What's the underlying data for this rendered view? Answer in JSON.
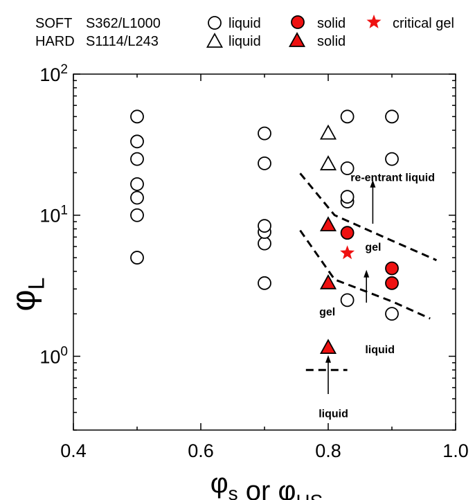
{
  "chart_data": {
    "type": "scatter",
    "xlabel": "φs or φHS",
    "ylabel": "φL",
    "xlim": [
      0.4,
      1.0
    ],
    "ylim": [
      0.3,
      100
    ],
    "x_scale": "linear",
    "y_scale": "log",
    "x_ticks": [
      "0.4",
      "0.6",
      "0.8",
      "1.0"
    ],
    "y_ticks": [
      "10^0",
      "10^1",
      "10^2"
    ],
    "legend": {
      "rows": [
        {
          "label": "SOFT",
          "code": "S362/L1000"
        },
        {
          "label": "HARD",
          "code": "S1114/L243"
        }
      ],
      "entries": [
        {
          "series": "soft-liquid",
          "label": "liquid"
        },
        {
          "series": "soft-solid",
          "label": "solid"
        },
        {
          "series": "soft-critical-gel",
          "label": "critical gel"
        },
        {
          "series": "hard-liquid",
          "label": "liquid"
        },
        {
          "series": "hard-solid",
          "label": "solid"
        }
      ]
    },
    "series": [
      {
        "id": "soft-liquid",
        "marker": "circle",
        "fill": "#ffffff",
        "points": [
          [
            0.5,
            5.0
          ],
          [
            0.5,
            10.0
          ],
          [
            0.5,
            13.3
          ],
          [
            0.5,
            16.6
          ],
          [
            0.5,
            25.0
          ],
          [
            0.5,
            33.3
          ],
          [
            0.5,
            50.0
          ],
          [
            0.7,
            3.3
          ],
          [
            0.7,
            6.3
          ],
          [
            0.7,
            7.6
          ],
          [
            0.7,
            8.4
          ],
          [
            0.7,
            23.3
          ],
          [
            0.7,
            38.0
          ],
          [
            0.83,
            2.5
          ],
          [
            0.83,
            12.5
          ],
          [
            0.83,
            13.5
          ],
          [
            0.83,
            21.5
          ],
          [
            0.83,
            50.0
          ],
          [
            0.9,
            2.0
          ],
          [
            0.9,
            25.0
          ],
          [
            0.9,
            50.0
          ]
        ]
      },
      {
        "id": "soft-solid",
        "marker": "circle",
        "fill": "#ee1111",
        "points": [
          [
            0.83,
            7.5
          ],
          [
            0.9,
            3.3
          ],
          [
            0.9,
            4.2
          ]
        ]
      },
      {
        "id": "soft-critical-gel",
        "marker": "star",
        "fill": "#ee1111",
        "points": [
          [
            0.83,
            5.4
          ]
        ]
      },
      {
        "id": "hard-liquid",
        "marker": "triangle",
        "fill": "#ffffff",
        "points": [
          [
            0.8,
            23.0
          ],
          [
            0.8,
            38.0
          ]
        ]
      },
      {
        "id": "hard-solid",
        "marker": "triangle",
        "fill": "#ee1111",
        "points": [
          [
            0.8,
            1.15
          ],
          [
            0.8,
            3.3
          ],
          [
            0.8,
            8.5
          ]
        ]
      }
    ],
    "boundaries": [
      {
        "style": "dashed",
        "points": [
          [
            0.756,
            19.8
          ],
          [
            0.81,
            10.0
          ],
          [
            0.9,
            6.6
          ],
          [
            0.97,
            4.8
          ]
        ]
      },
      {
        "style": "dashed",
        "points": [
          [
            0.756,
            7.8
          ],
          [
            0.81,
            3.5
          ],
          [
            0.9,
            2.45
          ],
          [
            0.96,
            1.85
          ]
        ]
      },
      {
        "style": "dashed",
        "points": [
          [
            0.765,
            0.8
          ],
          [
            0.83,
            0.8
          ]
        ]
      }
    ],
    "arrows": [
      {
        "from": [
          0.8,
          0.54
        ],
        "to": [
          0.8,
          1.02
        ]
      },
      {
        "from": [
          0.86,
          2.4
        ],
        "to": [
          0.86,
          4.1
        ]
      },
      {
        "from": [
          0.87,
          8.7
        ],
        "to": [
          0.87,
          17.8
        ]
      }
    ],
    "annotations": [
      {
        "text": "re-entrant liquid",
        "at": [
          0.835,
          17.4
        ]
      },
      {
        "text": "gel",
        "at": [
          0.858,
          5.6
        ]
      },
      {
        "text": "gel",
        "at": [
          0.786,
          1.95
        ]
      },
      {
        "text": "liquid",
        "at": [
          0.858,
          1.05
        ]
      },
      {
        "text": "liquid",
        "at": [
          0.785,
          0.37
        ]
      }
    ]
  }
}
